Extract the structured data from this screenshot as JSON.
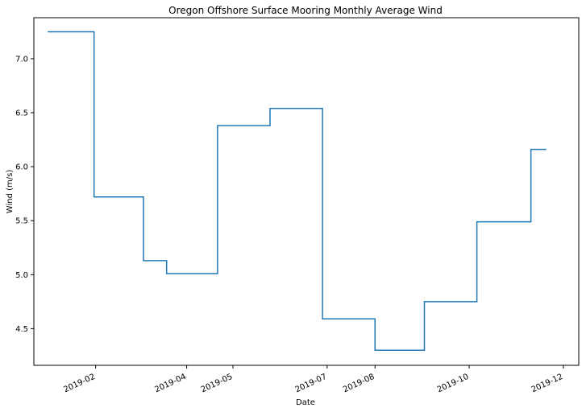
{
  "chart_data": {
    "type": "line",
    "step": "post",
    "title": "Oregon Offshore Surface Mooring Monthly Average Wind",
    "xlabel": "Date",
    "ylabel": "Wind (m/s)",
    "x_type": "date",
    "x_tick_values": [
      "2019-02-01",
      "2019-04-01",
      "2019-05-01",
      "2019-07-01",
      "2019-08-01",
      "2019-10-01",
      "2019-12-01"
    ],
    "x_tick_labels": [
      "2019-02",
      "2019-04",
      "2019-05",
      "2019-07",
      "2019-08",
      "2019-10",
      "2019-12"
    ],
    "y_ticks": [
      4.5,
      5.0,
      5.5,
      6.0,
      6.5,
      7.0
    ],
    "y_tick_labels": [
      "4.5",
      "5.0",
      "5.5",
      "6.0",
      "6.5",
      "7.0"
    ],
    "xlim": [
      "2018-12-23",
      "2019-12-11"
    ],
    "ylim": [
      4.16,
      7.38
    ],
    "grid": false,
    "line_color": "#1f77b4",
    "series": [
      {
        "x": [
          "2019-01-01",
          "2019-01-16",
          "2019-01-31",
          "2019-02-15",
          "2019-03-04",
          "2019-03-19",
          "2019-04-06",
          "2019-04-21",
          "2019-05-10",
          "2019-05-25",
          "2019-06-13",
          "2019-06-28",
          "2019-07-17",
          "2019-08-01",
          "2019-08-18",
          "2019-09-02",
          "2019-09-21",
          "2019-10-06",
          "2019-10-26",
          "2019-11-10",
          "2019-11-20"
        ],
        "y": [
          7.25,
          7.25,
          5.72,
          5.72,
          5.13,
          5.01,
          5.01,
          6.38,
          6.38,
          6.54,
          6.54,
          4.59,
          4.59,
          4.3,
          4.3,
          4.75,
          4.75,
          5.49,
          5.49,
          6.16,
          6.16
        ]
      }
    ]
  }
}
